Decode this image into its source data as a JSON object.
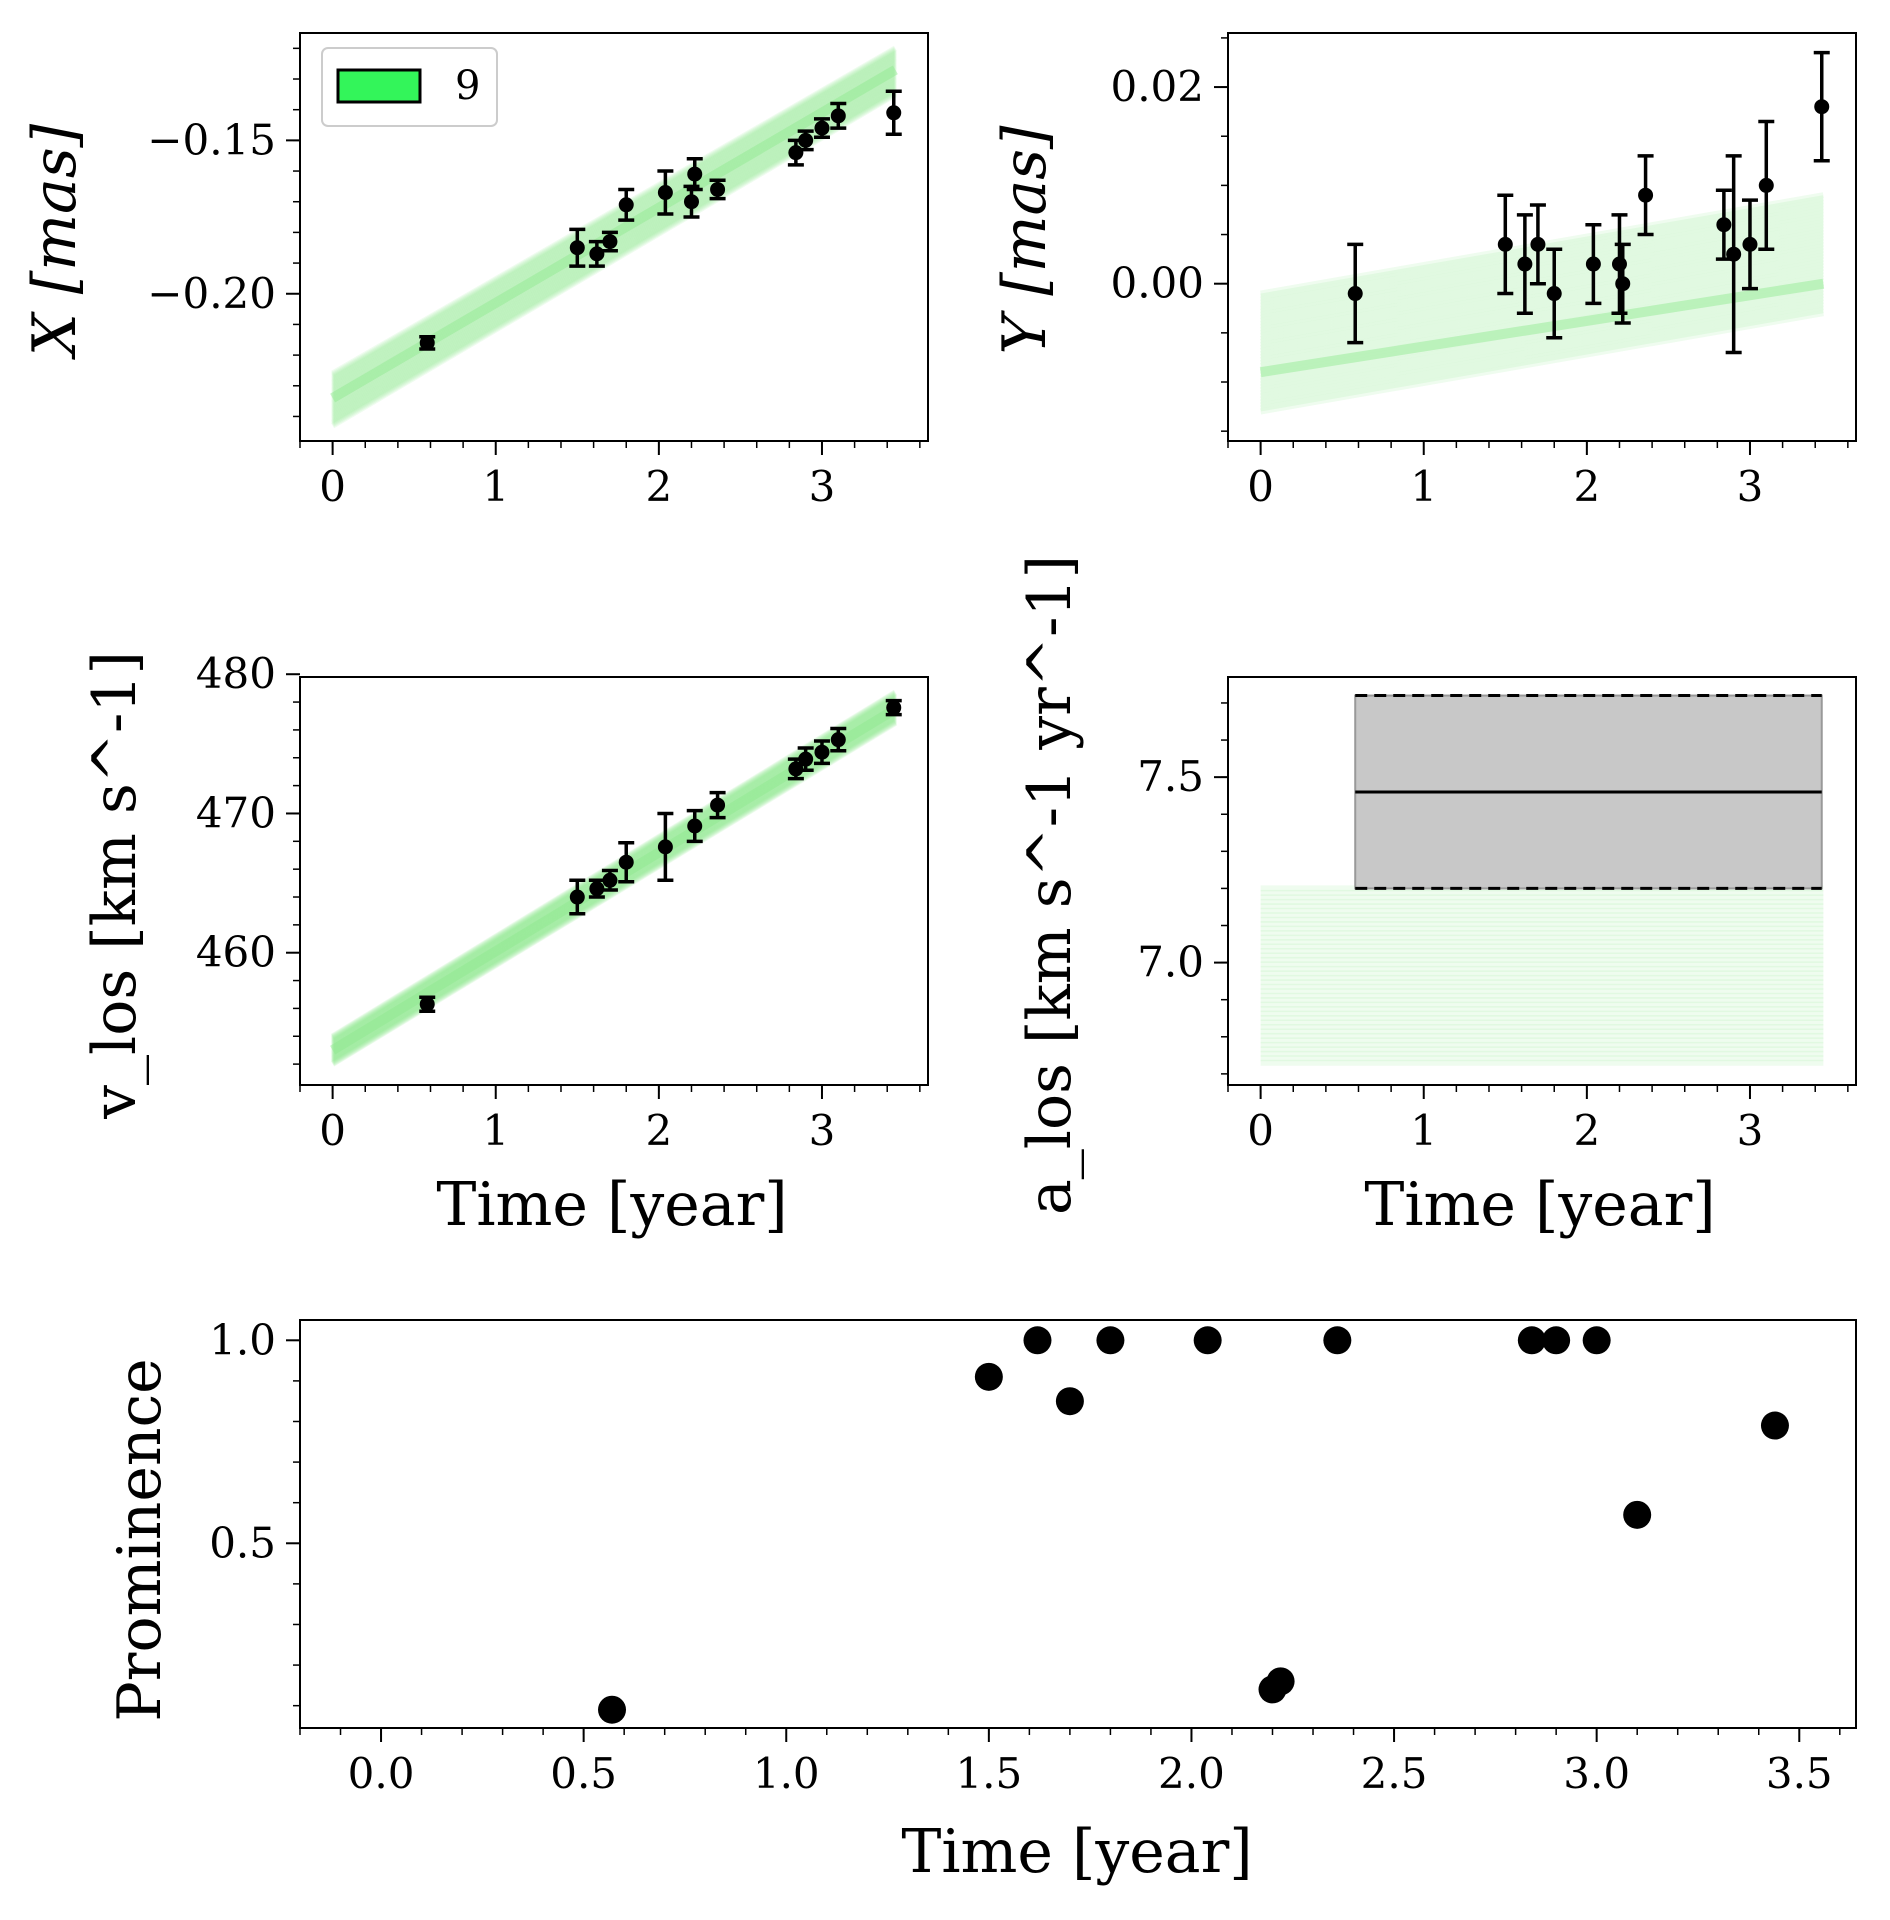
{
  "colors": {
    "model_band": "#8fe88f",
    "legend_patch": "#33f55a",
    "data_points": "#000000",
    "measurement_box": "#c8c8c8"
  },
  "chart_data": [
    {
      "id": "x-position",
      "type": "scatter",
      "xlabel": "",
      "ylabel": "X [mas]",
      "xlim": [
        -0.2,
        3.65
      ],
      "ylim": [
        -0.248,
        -0.115
      ],
      "xticks": [
        "0",
        "1",
        "2",
        "3"
      ],
      "yticks": [
        "-0.20",
        "-0.15"
      ],
      "legend": {
        "entries": [
          "9"
        ],
        "placement": "upper left"
      },
      "model_band": {
        "x": [
          0,
          3.45
        ],
        "y_start": [
          -0.243,
          -0.226
        ],
        "y_end": [
          -0.135,
          -0.12
        ],
        "centre": [
          -0.234,
          -0.127
        ],
        "n_lines": 40
      },
      "points": [
        {
          "x": 0.58,
          "y": -0.216,
          "err": 0.002
        },
        {
          "x": 1.5,
          "y": -0.185,
          "err": 0.006
        },
        {
          "x": 1.62,
          "y": -0.187,
          "err": 0.004
        },
        {
          "x": 1.7,
          "y": -0.183,
          "err": 0.003
        },
        {
          "x": 1.8,
          "y": -0.171,
          "err": 0.005
        },
        {
          "x": 2.04,
          "y": -0.167,
          "err": 0.007
        },
        {
          "x": 2.2,
          "y": -0.17,
          "err": 0.005
        },
        {
          "x": 2.22,
          "y": -0.161,
          "err": 0.005
        },
        {
          "x": 2.36,
          "y": -0.166,
          "err": 0.003
        },
        {
          "x": 2.84,
          "y": -0.154,
          "err": 0.004
        },
        {
          "x": 2.9,
          "y": -0.15,
          "err": 0.003
        },
        {
          "x": 3.0,
          "y": -0.146,
          "err": 0.003
        },
        {
          "x": 3.1,
          "y": -0.142,
          "err": 0.004
        },
        {
          "x": 3.44,
          "y": -0.141,
          "err": 0.007
        }
      ]
    },
    {
      "id": "y-position",
      "type": "scatter",
      "xlabel": "",
      "ylabel": "Y [mas]",
      "xlim": [
        -0.2,
        3.65
      ],
      "ylim": [
        -0.016,
        0.0255
      ],
      "xticks": [
        "0",
        "1",
        "2",
        "3"
      ],
      "yticks": [
        "0.00",
        "0.02"
      ],
      "model_band": {
        "x": [
          0,
          3.45
        ],
        "y_start": [
          -0.013,
          -0.001
        ],
        "y_end": [
          -0.003,
          0.009
        ],
        "centre": [
          -0.009,
          0.0
        ],
        "n_lines": 40
      },
      "points": [
        {
          "x": 0.58,
          "y": -0.001,
          "err": 0.005
        },
        {
          "x": 1.5,
          "y": 0.004,
          "err": 0.005
        },
        {
          "x": 1.62,
          "y": 0.002,
          "err": 0.005
        },
        {
          "x": 1.7,
          "y": 0.004,
          "err": 0.004
        },
        {
          "x": 1.8,
          "y": -0.001,
          "err": 0.0045
        },
        {
          "x": 2.04,
          "y": 0.002,
          "err": 0.004
        },
        {
          "x": 2.2,
          "y": 0.002,
          "err": 0.005
        },
        {
          "x": 2.22,
          "y": 0.0,
          "err": 0.004
        },
        {
          "x": 2.36,
          "y": 0.009,
          "err": 0.004
        },
        {
          "x": 2.84,
          "y": 0.006,
          "err": 0.0035
        },
        {
          "x": 2.9,
          "y": 0.003,
          "err": 0.01
        },
        {
          "x": 3.0,
          "y": 0.004,
          "err": 0.0045
        },
        {
          "x": 3.1,
          "y": 0.01,
          "err": 0.0065
        },
        {
          "x": 3.44,
          "y": 0.018,
          "err": 0.0055
        }
      ]
    },
    {
      "id": "los-velocity",
      "type": "scatter",
      "xlabel": "Time [year]",
      "ylabel": "v_los [km s^-1]",
      "xlim": [
        -0.2,
        3.65
      ],
      "ylim": [
        450.5,
        479.8
      ],
      "xticks": [
        "0",
        "1",
        "2",
        "3"
      ],
      "yticks": [
        "460",
        "470",
        "480"
      ],
      "model_band": {
        "x": [
          0,
          3.45
        ],
        "y_start": [
          452.0,
          454.0
        ],
        "y_end": [
          476.5,
          478.7
        ],
        "centre": [
          453.0,
          477.5
        ],
        "n_lines": 40
      },
      "points": [
        {
          "x": 0.58,
          "y": 456.3,
          "err": 0.5
        },
        {
          "x": 1.5,
          "y": 464.0,
          "err": 1.2
        },
        {
          "x": 1.62,
          "y": 464.6,
          "err": 0.6
        },
        {
          "x": 1.7,
          "y": 465.2,
          "err": 0.7
        },
        {
          "x": 1.8,
          "y": 466.5,
          "err": 1.4
        },
        {
          "x": 2.04,
          "y": 467.6,
          "err": 2.4
        },
        {
          "x": 2.22,
          "y": 469.1,
          "err": 1.1
        },
        {
          "x": 2.36,
          "y": 470.6,
          "err": 0.9
        },
        {
          "x": 2.84,
          "y": 473.2,
          "err": 0.7
        },
        {
          "x": 2.9,
          "y": 473.9,
          "err": 0.8
        },
        {
          "x": 3.0,
          "y": 474.4,
          "err": 0.8
        },
        {
          "x": 3.1,
          "y": 475.3,
          "err": 0.8
        },
        {
          "x": 3.44,
          "y": 477.6,
          "err": 0.5
        }
      ]
    },
    {
      "id": "los-acceleration",
      "type": "area",
      "xlabel": "Time [year]",
      "ylabel": "a_los [km s^-1 yr^-1]",
      "xlim": [
        -0.2,
        3.65
      ],
      "ylim": [
        6.67,
        7.77
      ],
      "xticks": [
        "0",
        "1",
        "2",
        "3"
      ],
      "yticks": [
        "7.0",
        "7.5"
      ],
      "measurement": {
        "x_start": 0.58,
        "x_end": 3.44,
        "value": 7.46,
        "lower": 7.2,
        "upper": 7.72
      },
      "model_band": {
        "x": [
          0,
          3.45
        ],
        "y_range": [
          6.73,
          7.2
        ],
        "n_lines": 40
      }
    },
    {
      "id": "prominence",
      "type": "scatter",
      "xlabel": "Time [year]",
      "ylabel": "Prominence",
      "xlim": [
        -0.2,
        3.64
      ],
      "ylim": [
        0.045,
        1.05
      ],
      "xticks": [
        "0.0",
        "0.5",
        "1.0",
        "1.5",
        "2.0",
        "2.5",
        "3.0",
        "3.5"
      ],
      "yticks": [
        "0.5",
        "1.0"
      ],
      "points": [
        {
          "x": 0.57,
          "y": 0.09
        },
        {
          "x": 1.5,
          "y": 0.91
        },
        {
          "x": 1.62,
          "y": 1.0
        },
        {
          "x": 1.7,
          "y": 0.85
        },
        {
          "x": 1.8,
          "y": 1.0
        },
        {
          "x": 2.04,
          "y": 1.0
        },
        {
          "x": 2.2,
          "y": 0.14
        },
        {
          "x": 2.22,
          "y": 0.16
        },
        {
          "x": 2.36,
          "y": 1.0
        },
        {
          "x": 2.84,
          "y": 1.0
        },
        {
          "x": 2.9,
          "y": 1.0
        },
        {
          "x": 3.0,
          "y": 1.0
        },
        {
          "x": 3.1,
          "y": 0.57
        },
        {
          "x": 3.44,
          "y": 0.79
        }
      ]
    }
  ]
}
